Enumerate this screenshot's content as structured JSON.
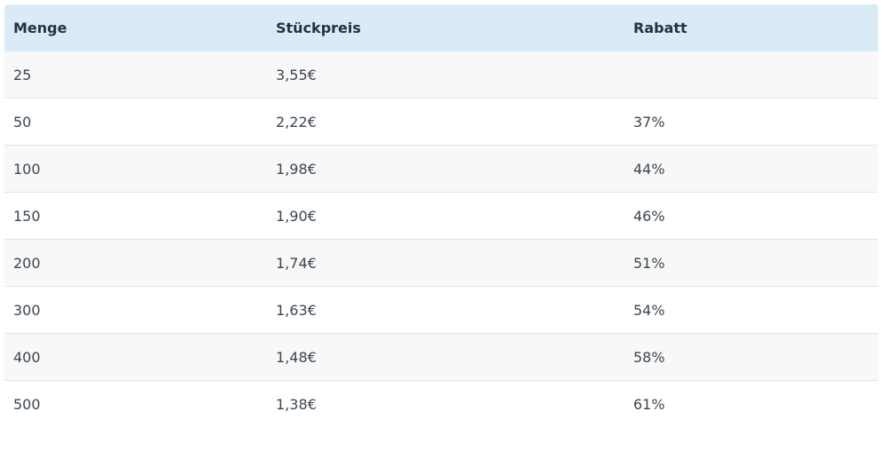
{
  "table": {
    "headers": [
      "Menge",
      "Stückpreis",
      "Rabatt"
    ],
    "rows": [
      [
        "25",
        "3,55€",
        ""
      ],
      [
        "50",
        "2,22€",
        "37%"
      ],
      [
        "100",
        "1,98€",
        "44%"
      ],
      [
        "150",
        "1,90€",
        "46%"
      ],
      [
        "200",
        "1,74€",
        "51%"
      ],
      [
        "300",
        "1,63€",
        "54%"
      ],
      [
        "400",
        "1,48€",
        "58%"
      ],
      [
        "500",
        "1,38€",
        "61%"
      ]
    ]
  },
  "colors": {
    "header_bg": "#d9ecf5",
    "row_alt_bg": "#f8f8f8",
    "divider": "#e3e3e3"
  }
}
